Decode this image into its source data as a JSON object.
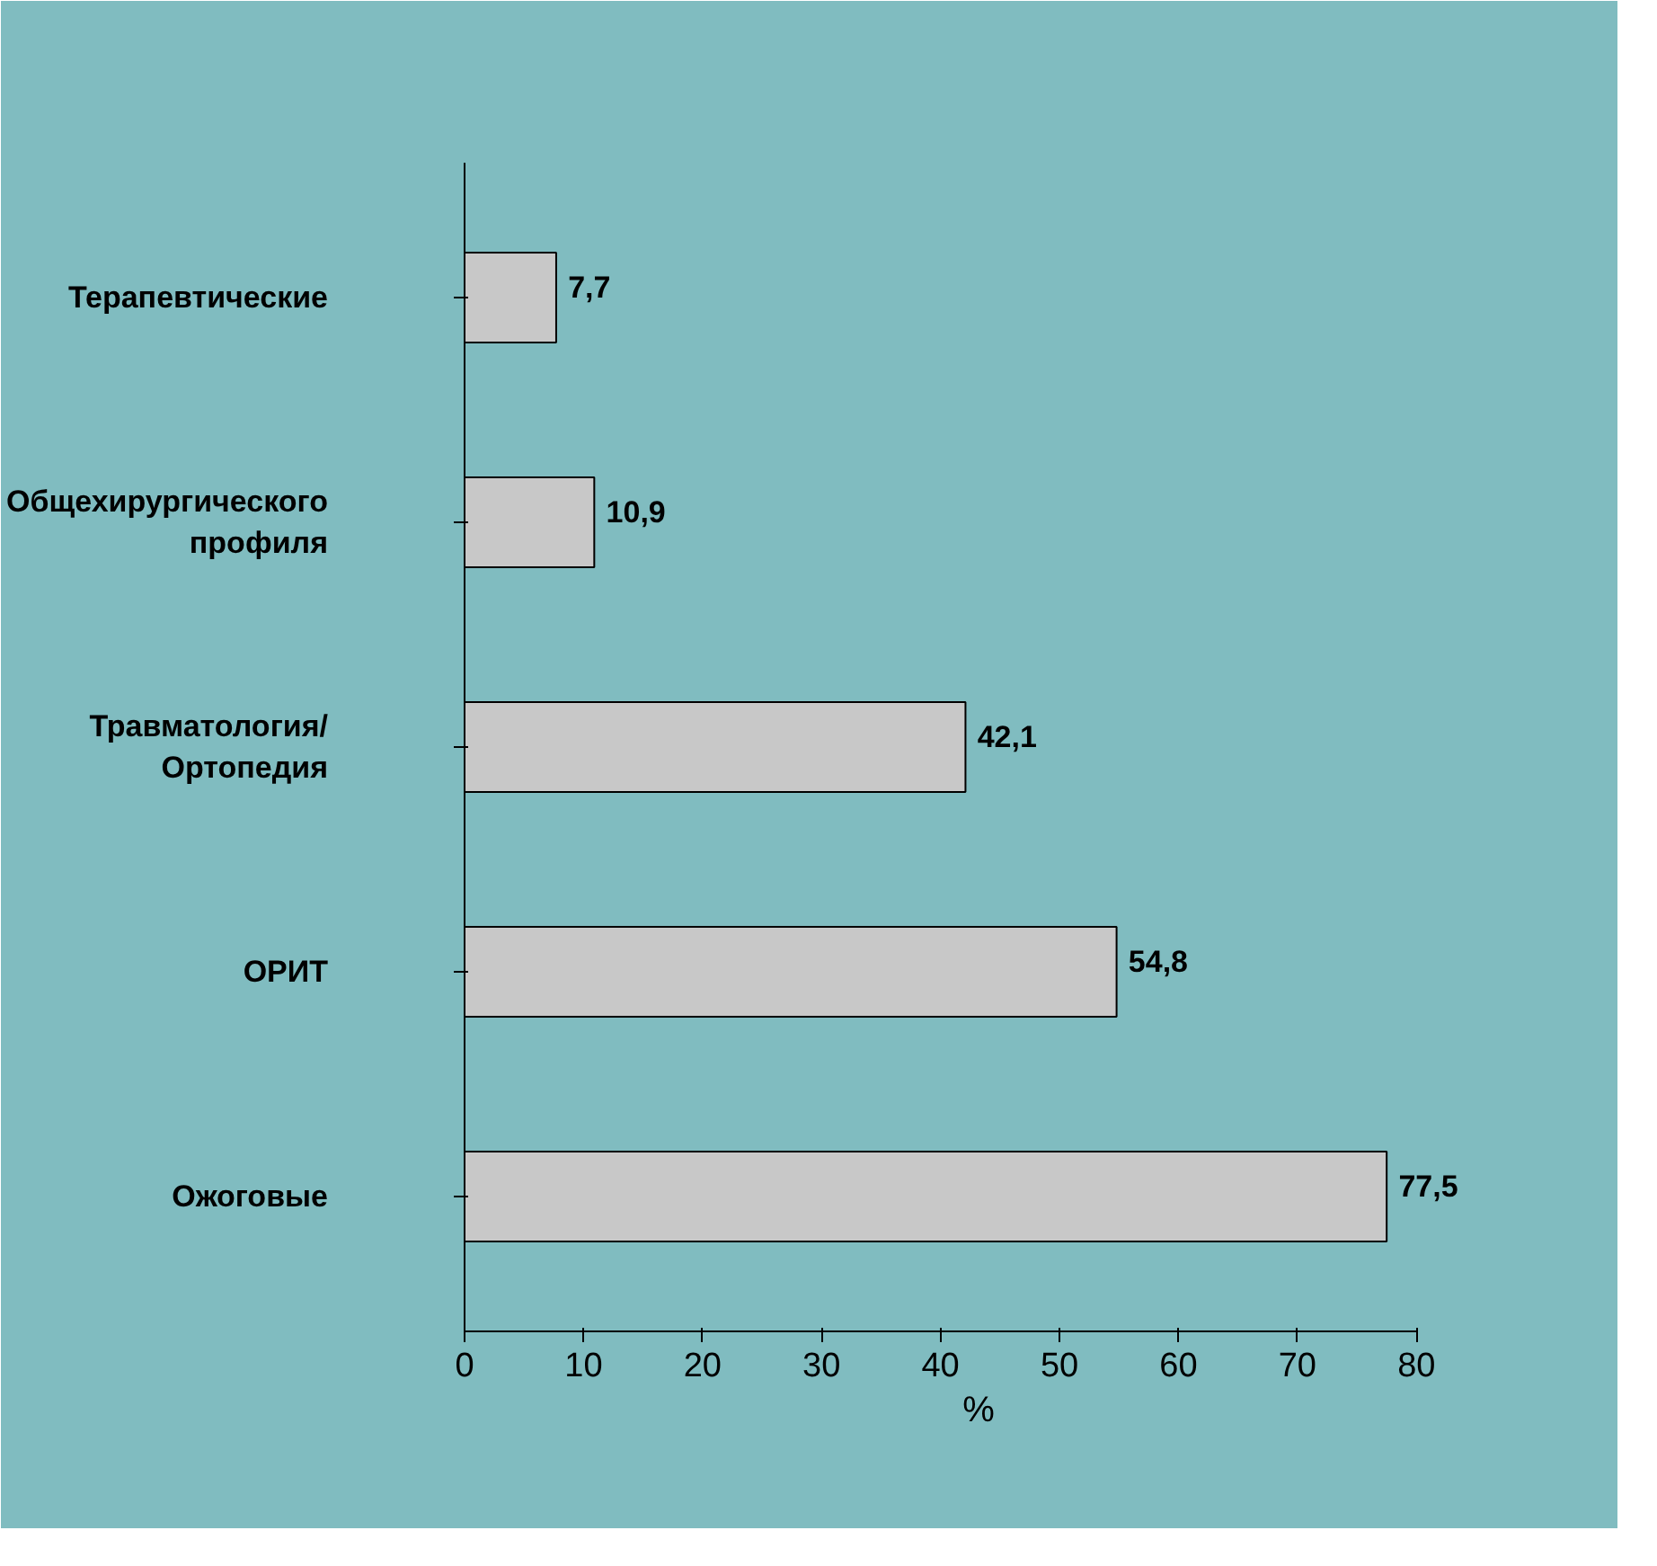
{
  "chart_data": {
    "type": "bar",
    "orientation": "horizontal",
    "categories": [
      "Терапевтические",
      "Общехирургического\nпрофиля",
      "Травматология/\nОртопедия",
      "ОРИТ",
      "Ожоговые"
    ],
    "values": [
      7.7,
      10.9,
      42.1,
      54.8,
      77.5
    ],
    "value_labels": [
      "7,7",
      "10,9",
      "42,1",
      "54,8",
      "77,5"
    ],
    "color": "#c8c8c8",
    "xlabel": "%",
    "xlim": [
      0,
      80
    ],
    "xticks": [
      0,
      10,
      20,
      30,
      40,
      50,
      60,
      70,
      80
    ],
    "grid": false
  }
}
